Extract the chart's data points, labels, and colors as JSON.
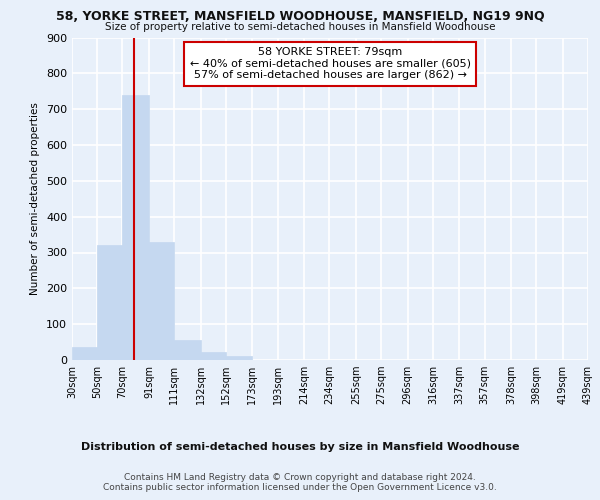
{
  "title": "58, YORKE STREET, MANSFIELD WOODHOUSE, MANSFIELD, NG19 9NQ",
  "subtitle": "Size of property relative to semi-detached houses in Mansfield Woodhouse",
  "xlabel_bottom": "Distribution of semi-detached houses by size in Mansfield Woodhouse",
  "ylabel": "Number of semi-detached properties",
  "property_label": "58 YORKE STREET: 79sqm",
  "annotation_line1": "← 40% of semi-detached houses are smaller (605)",
  "annotation_line2": "57% of semi-detached houses are larger (862) →",
  "footer1": "Contains HM Land Registry data © Crown copyright and database right 2024.",
  "footer2": "Contains public sector information licensed under the Open Government Licence v3.0.",
  "bin_edges": [
    30,
    50,
    70,
    91,
    111,
    132,
    152,
    173,
    193,
    214,
    234,
    255,
    275,
    296,
    316,
    337,
    357,
    378,
    398,
    419,
    439
  ],
  "bar_heights": [
    35,
    320,
    740,
    330,
    55,
    22,
    10,
    0,
    0,
    0,
    0,
    0,
    0,
    0,
    0,
    0,
    0,
    0,
    0,
    0
  ],
  "bar_color": "#c5d8f0",
  "bar_edge_color": "#c5d8f0",
  "highlight_bin_index": 2,
  "highlight_edge_color": "#cc0000",
  "red_line_x": 79,
  "annotation_box_color": "#ffffff",
  "annotation_box_edge": "#cc0000",
  "background_color": "#e8f0fa",
  "plot_bg_color": "#e8f0fa",
  "grid_color": "#ffffff",
  "ylim": [
    0,
    900
  ],
  "yticks": [
    0,
    100,
    200,
    300,
    400,
    500,
    600,
    700,
    800,
    900
  ]
}
